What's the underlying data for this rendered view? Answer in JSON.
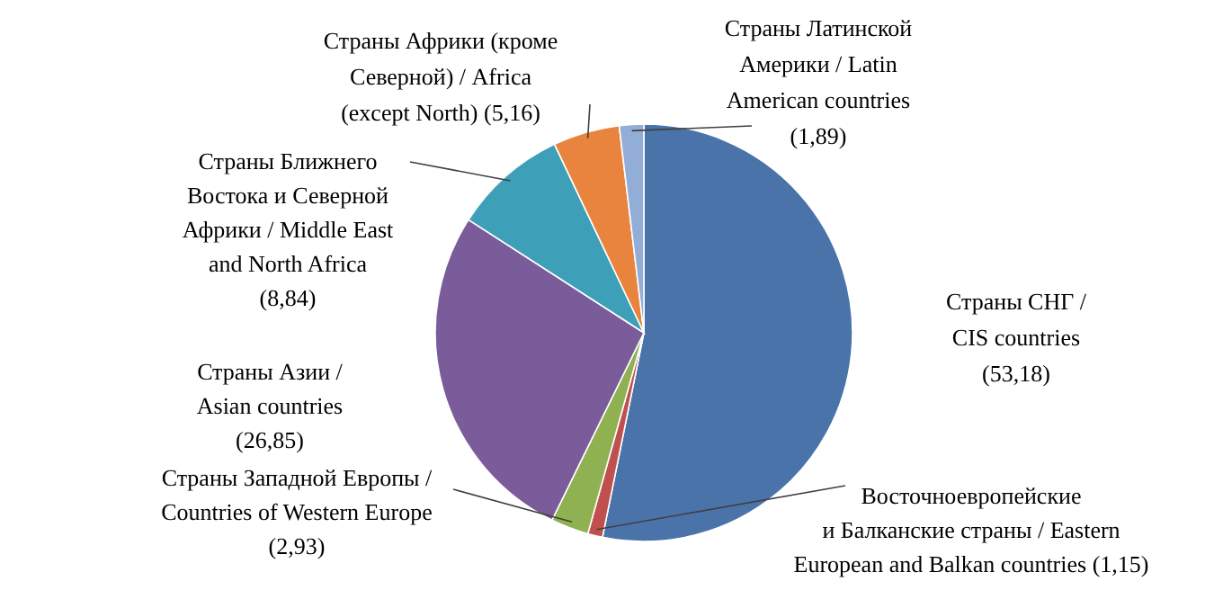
{
  "chart_data": {
    "type": "pie",
    "categories": [
      "Страны СНГ /\nCIS countries",
      "Восточноевропейские\nи Балканские страны / Eastern\nEuropean and Balkan countries",
      "Страны Западной Европы /\nCountries of Western Europe",
      "Страны Азии /\nAsian countries",
      "Страны Ближнего\nВостока и Северной\nАфрики / Middle East\nand North Africa",
      "Страны Африки (кроме\nСеверной) / Africa\n(except North)",
      "Страны Латинской\nАмерики / Latin\nAmerican countries"
    ],
    "values": [
      53.18,
      1.15,
      2.93,
      26.85,
      8.84,
      5.16,
      1.89
    ],
    "value_labels": [
      "(53,18)",
      "(1,15)",
      "(2,93)",
      "(26,85)",
      "(8,84)",
      "(5,16)",
      "(1,89)"
    ],
    "colors": [
      "#4a73aa",
      "#c0504d",
      "#8fb151",
      "#7a5c9a",
      "#3e9fb8",
      "#e8843e",
      "#93aed6"
    ]
  }
}
